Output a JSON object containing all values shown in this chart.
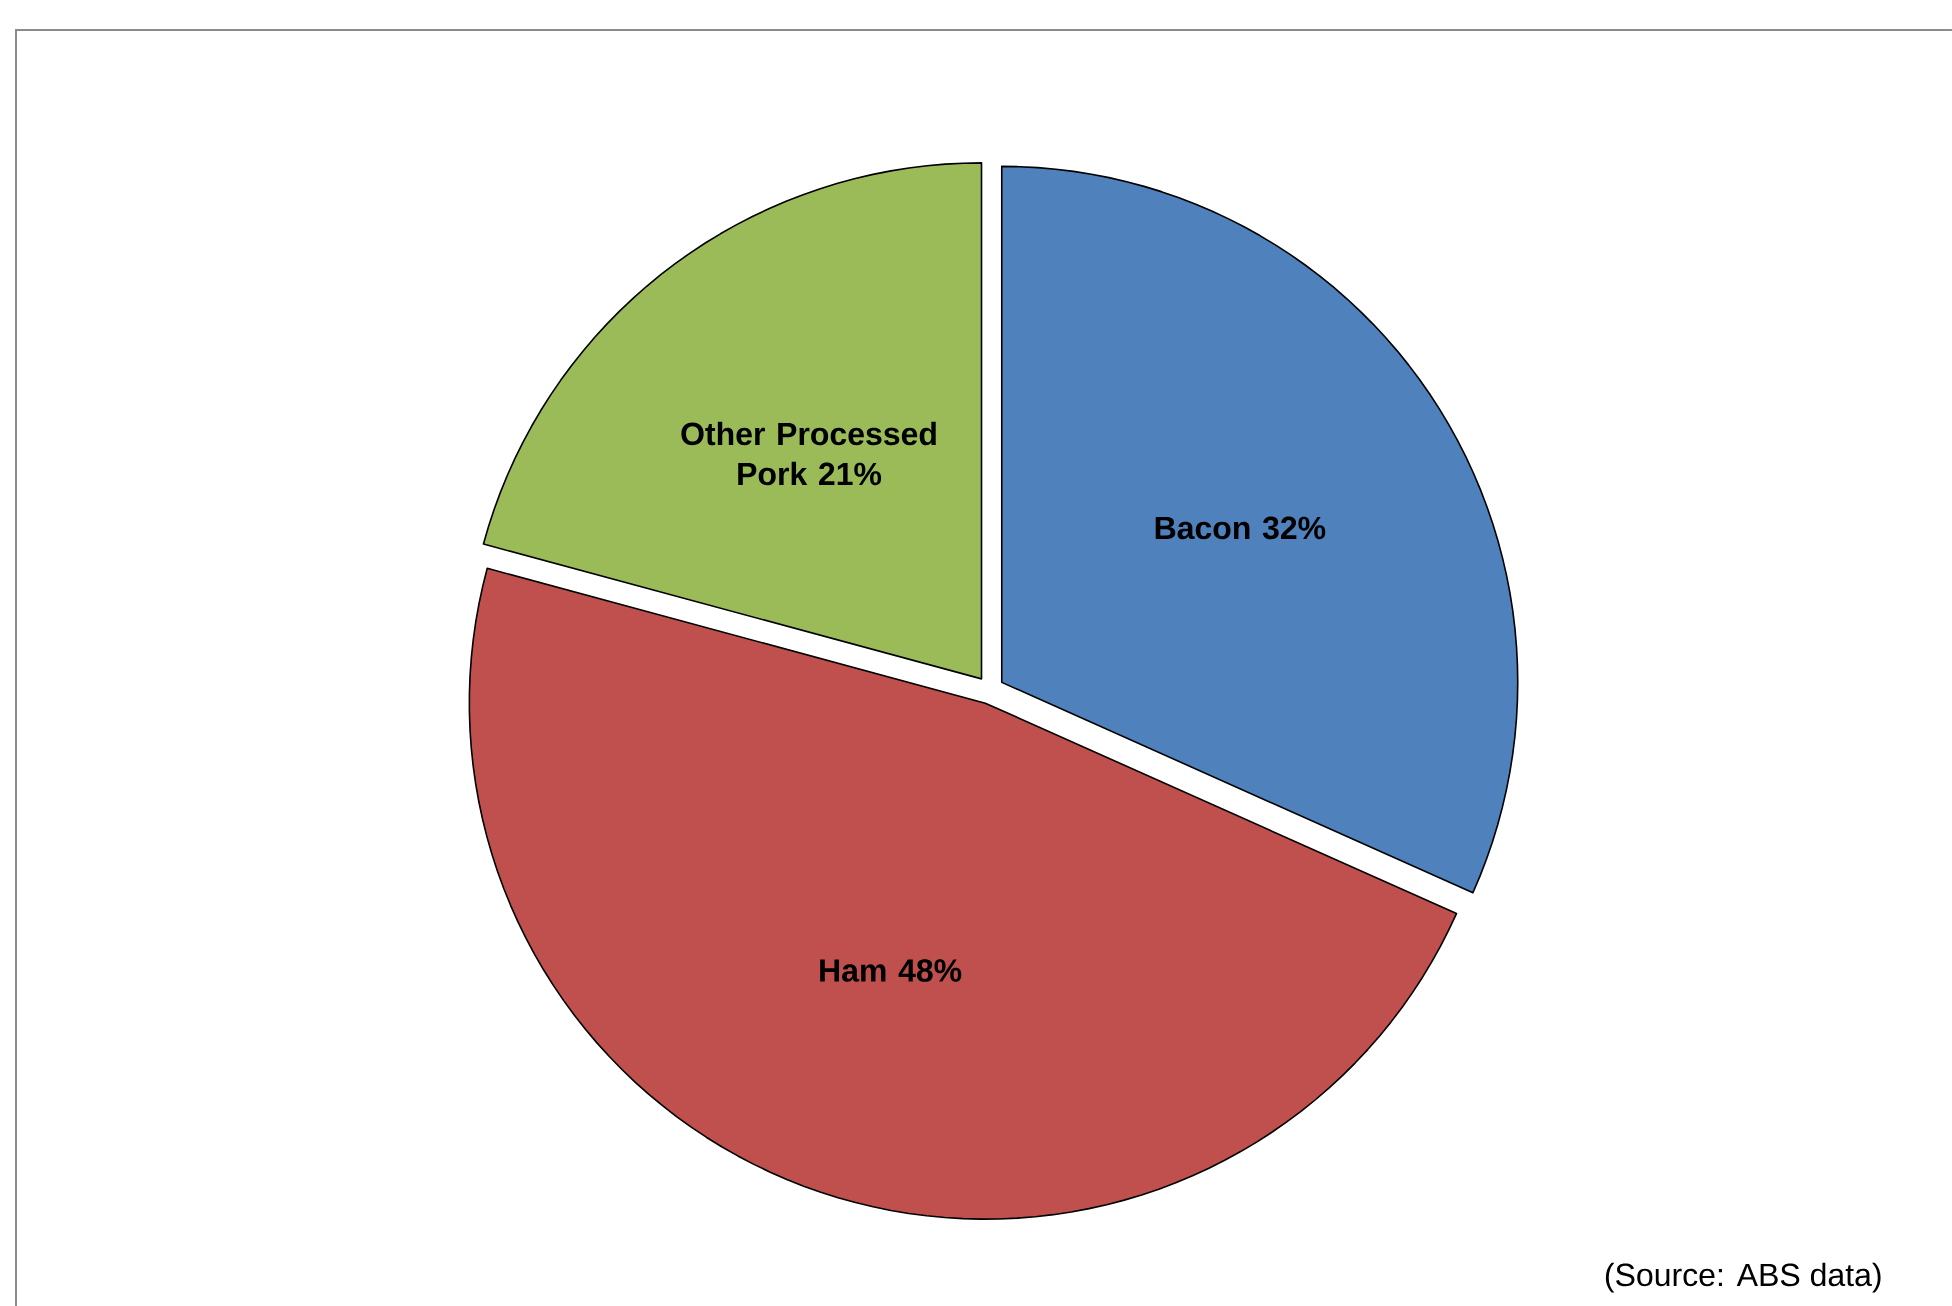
{
  "chart_data": {
    "type": "pie",
    "categories": [
      "Bacon",
      "Ham",
      "Other Processed Pork"
    ],
    "values": [
      32,
      48,
      21
    ],
    "value_labels": [
      "32%",
      "48%",
      "21%"
    ],
    "colors": [
      "#4f81bd",
      "#c0504d",
      "#9bbb59"
    ],
    "annotations": [
      "(Source: ABS data)"
    ]
  }
}
